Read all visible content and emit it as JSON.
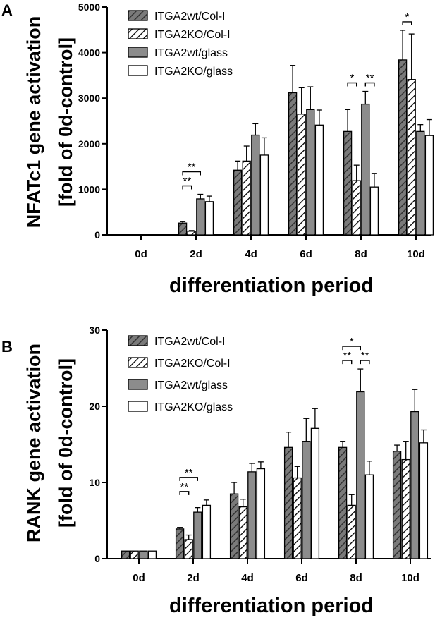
{
  "chart_data": [
    {
      "panel": "A",
      "type": "bar",
      "ylabel_line1": "NFATc1 gene activation",
      "ylabel_line2": "[fold of 0d-control]",
      "xlabel": "differentiation period",
      "categories": [
        "0d",
        "2d",
        "4d",
        "6d",
        "8d",
        "10d"
      ],
      "ylim": [
        0,
        5000
      ],
      "yticks": [
        0,
        1000,
        2000,
        3000,
        4000,
        5000
      ],
      "legend_position": "top-left",
      "series": [
        {
          "name": "ITGA2wt/Col-I",
          "values": [
            0,
            260,
            1420,
            3120,
            2270,
            3840
          ],
          "errors": [
            0,
            30,
            200,
            600,
            480,
            650
          ]
        },
        {
          "name": "ITGA2KO/Col-I",
          "values": [
            0,
            80,
            1620,
            2650,
            1190,
            3410
          ],
          "errors": [
            0,
            15,
            330,
            580,
            340,
            1000
          ]
        },
        {
          "name": "ITGA2wt/glass",
          "values": [
            0,
            790,
            2190,
            2750,
            2870,
            2270
          ],
          "errors": [
            0,
            100,
            250,
            500,
            280,
            150
          ]
        },
        {
          "name": "ITGA2KO/glass",
          "values": [
            0,
            730,
            1750,
            2410,
            1050,
            2180
          ],
          "errors": [
            0,
            120,
            380,
            330,
            300,
            350
          ]
        }
      ],
      "significance": [
        {
          "category": "2d",
          "from": 0,
          "to": 2,
          "label": "**",
          "level": 2
        },
        {
          "category": "2d",
          "from": 0,
          "to": 1,
          "label": "**",
          "level": 1
        },
        {
          "category": "8d",
          "from": 0,
          "to": 1,
          "label": "*",
          "level": 1
        },
        {
          "category": "8d",
          "from": 2,
          "to": 3,
          "label": "**",
          "level": 1
        },
        {
          "category": "10d",
          "from": 0,
          "to": 1,
          "label": "*",
          "level": 1
        }
      ]
    },
    {
      "panel": "B",
      "type": "bar",
      "ylabel_line1": "RANK gene activation",
      "ylabel_line2": "[fold of 0d-control]",
      "xlabel": "differentiation period",
      "categories": [
        "0d",
        "2d",
        "4d",
        "6d",
        "8d",
        "10d"
      ],
      "ylim": [
        0,
        30
      ],
      "yticks": [
        0,
        10,
        20,
        30
      ],
      "legend_position": "top-left",
      "series": [
        {
          "name": "ITGA2wt/Col-I",
          "values": [
            1,
            3.9,
            8.5,
            14.6,
            14.6,
            14.1
          ],
          "errors": [
            0,
            0.2,
            1.5,
            2.0,
            0.8,
            0.8
          ]
        },
        {
          "name": "ITGA2KO/Col-I",
          "values": [
            1,
            2.5,
            6.8,
            10.6,
            7.0,
            13.0
          ],
          "errors": [
            0,
            0.6,
            1.0,
            1.5,
            1.4,
            2.4
          ]
        },
        {
          "name": "ITGA2wt/glass",
          "values": [
            1,
            6.1,
            11.4,
            15.4,
            21.9,
            19.3
          ],
          "errors": [
            0,
            0.6,
            1.1,
            3.0,
            3.0,
            2.9
          ]
        },
        {
          "name": "ITGA2KO/glass",
          "values": [
            1,
            7.0,
            11.8,
            17.1,
            11.0,
            15.2
          ],
          "errors": [
            0,
            0.7,
            0.9,
            2.6,
            1.8,
            1.7
          ]
        }
      ],
      "significance": [
        {
          "category": "2d",
          "from": 0,
          "to": 2,
          "label": "**",
          "level": 2
        },
        {
          "category": "2d",
          "from": 0,
          "to": 1,
          "label": "**",
          "level": 1
        },
        {
          "category": "8d",
          "from": 0,
          "to": 2,
          "label": "*",
          "level": 2
        },
        {
          "category": "8d",
          "from": 0,
          "to": 1,
          "label": "**",
          "level": 1
        },
        {
          "category": "8d",
          "from": 2,
          "to": 3,
          "label": "**",
          "level": 1
        }
      ]
    }
  ],
  "colors": {
    "bar_solid": "#8c8c8c",
    "bar_hatch_fill": "#6e6e6e",
    "bar_white": "#ffffff",
    "stroke": "#000000"
  }
}
